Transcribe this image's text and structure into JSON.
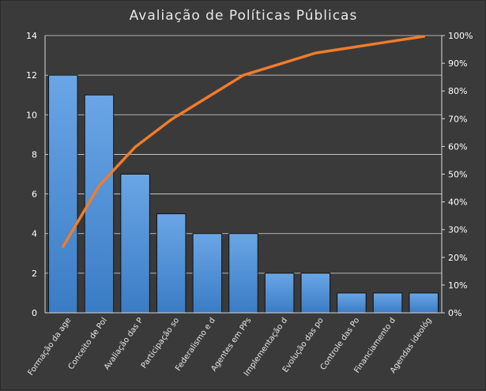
{
  "chart_data": {
    "type": "bar",
    "title": "Avaliação de Políticas Públicas",
    "categories": [
      "Formação da age",
      "Conceito de Pol",
      "Avaliação das P",
      "Participação so",
      "Federalismo e d",
      "Agentes em PPs",
      "Implementação d",
      "Evolução das po",
      "Controle das Po",
      "Financiamento d",
      "Agendas ideológ"
    ],
    "series": [
      {
        "type": "bar",
        "values": [
          12,
          11,
          7,
          5,
          4,
          4,
          2,
          2,
          1,
          1,
          1
        ],
        "color": "#4a8fd6"
      },
      {
        "type": "line",
        "axis": "secondary",
        "values": [
          23.9,
          45.8,
          59.8,
          69.7,
          77.7,
          85.7,
          89.7,
          93.7,
          95.7,
          97.7,
          99.7
        ],
        "color": "#f07c2a"
      }
    ],
    "ylim": [
      0,
      14
    ],
    "yticks": [
      0,
      2,
      4,
      6,
      8,
      10,
      12,
      14
    ],
    "y2lim": [
      0,
      100
    ],
    "y2ticks": [
      "0%",
      "10%",
      "20%",
      "30%",
      "40%",
      "50%",
      "60%",
      "70%",
      "80%",
      "90%",
      "100%"
    ],
    "grid": true,
    "legend": "none"
  }
}
